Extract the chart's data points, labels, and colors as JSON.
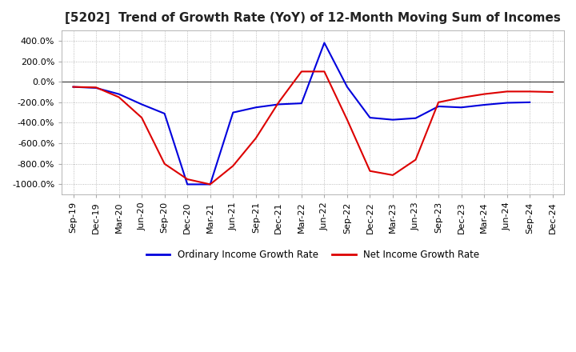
{
  "title": "[5202]  Trend of Growth Rate (YoY) of 12-Month Moving Sum of Incomes",
  "title_fontsize": 11,
  "background_color": "#ffffff",
  "grid_color": "#aaaaaa",
  "xlabels": [
    "Sep-19",
    "Dec-19",
    "Mar-20",
    "Jun-20",
    "Sep-20",
    "Dec-20",
    "Mar-21",
    "Jun-21",
    "Sep-21",
    "Dec-21",
    "Mar-22",
    "Jun-22",
    "Sep-22",
    "Dec-22",
    "Mar-23",
    "Jun-23",
    "Sep-23",
    "Dec-23",
    "Mar-24",
    "Jun-24",
    "Sep-24",
    "Dec-24"
  ],
  "ylim": [
    -1100,
    500
  ],
  "yticks": [
    400,
    200,
    0,
    -200,
    -400,
    -600,
    -800,
    -1000
  ],
  "ordinary_income": [
    -50,
    -60,
    -120,
    -220,
    -310,
    -1000,
    -1000,
    -300,
    -250,
    -220,
    -210,
    380,
    -50,
    -350,
    -370,
    -355,
    -240,
    -250,
    -225,
    -205,
    -200,
    null
  ],
  "net_income": [
    -50,
    -55,
    -150,
    -350,
    -800,
    -950,
    -1000,
    -820,
    -550,
    -200,
    100,
    100,
    -370,
    -870,
    -910,
    -760,
    -200,
    -155,
    -120,
    -95,
    -95,
    -100
  ],
  "color_ordinary": "#0000dd",
  "color_net": "#dd0000",
  "legend_ordinary": "Ordinary Income Growth Rate",
  "legend_net": "Net Income Growth Rate"
}
